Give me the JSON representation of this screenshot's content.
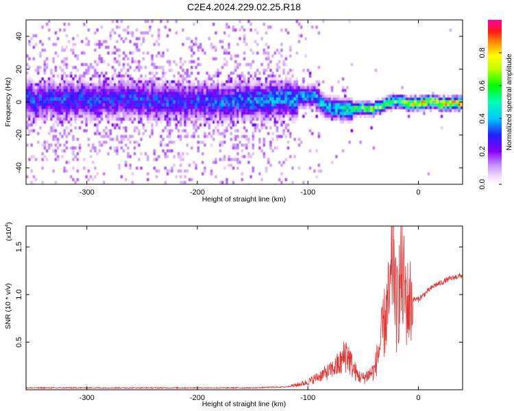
{
  "title": "C2E4.2024.229.02.25.R18",
  "colors": {
    "snr_line": "#e53030",
    "frame": "#000000"
  },
  "chart_data": [
    {
      "type": "heatmap",
      "xlabel": "Height of straight line (km)",
      "ylabel": "Frequency (Hz)",
      "xlim": [
        -355,
        40
      ],
      "ylim": [
        -50,
        50
      ],
      "xticks": [
        -300,
        -200,
        -100,
        0
      ],
      "yticks": [
        -40,
        -20,
        0,
        20,
        40
      ],
      "grid": false,
      "colorbar": {
        "label": "Normalized spectral amplitude",
        "range": [
          0,
          1
        ],
        "ticks": [
          "0.0",
          "0.2",
          "0.4",
          "0.6",
          "0.8"
        ]
      },
      "description_points": {
        "band_center_hz": [
          [
            -355,
            2
          ],
          [
            -300,
            2
          ],
          [
            -200,
            1
          ],
          [
            -150,
            2
          ],
          [
            -110,
            4
          ],
          [
            -95,
            5
          ],
          [
            -85,
            -2
          ],
          [
            -70,
            -4
          ],
          [
            -55,
            -3
          ],
          [
            -40,
            -3
          ],
          [
            -30,
            0
          ],
          [
            -20,
            2
          ],
          [
            -10,
            0
          ],
          [
            0,
            0
          ],
          [
            10,
            1
          ],
          [
            20,
            0
          ],
          [
            40,
            0
          ]
        ],
        "peak_amplitude": [
          [
            -355,
            0.35
          ],
          [
            -200,
            0.35
          ],
          [
            -110,
            0.45
          ],
          [
            -80,
            0.5
          ],
          [
            -40,
            0.75
          ],
          [
            -20,
            0.7
          ],
          [
            0,
            0.85
          ],
          [
            20,
            0.9
          ],
          [
            40,
            0.9
          ]
        ]
      }
    },
    {
      "type": "line",
      "xlabel": "Height of straight line (km)",
      "ylabel": "SNR (10 * v/v)",
      "y_multiplier": "(x10",
      "y_multiplier_exp": "4",
      "y_multiplier_close": ")",
      "xlim": [
        -355,
        40
      ],
      "ylim": [
        0,
        1.72
      ],
      "xticks": [
        -300,
        -200,
        -100,
        0
      ],
      "yticks": [
        0.5,
        1.0,
        1.5
      ],
      "grid": false,
      "series": [
        {
          "x": [
            -355,
            -300,
            -250,
            -200,
            -150,
            -120,
            -110,
            -100,
            -90,
            -80,
            -70,
            -65,
            -60,
            -55,
            -50,
            -45,
            -40,
            -35,
            -30,
            -27,
            -25,
            -23,
            -20,
            -17,
            -15,
            -10,
            -5,
            0,
            5,
            10,
            15,
            20,
            25,
            30,
            35,
            40
          ],
          "y": [
            0.02,
            0.02,
            0.02,
            0.02,
            0.02,
            0.03,
            0.05,
            0.08,
            0.14,
            0.2,
            0.28,
            0.4,
            0.25,
            0.15,
            0.12,
            0.16,
            0.2,
            0.45,
            0.75,
            0.9,
            1.0,
            1.68,
            0.8,
            1.1,
            1.2,
            0.9,
            0.95,
            0.95,
            1.0,
            1.05,
            1.1,
            1.12,
            1.15,
            1.17,
            1.19,
            1.2
          ]
        }
      ]
    }
  ]
}
